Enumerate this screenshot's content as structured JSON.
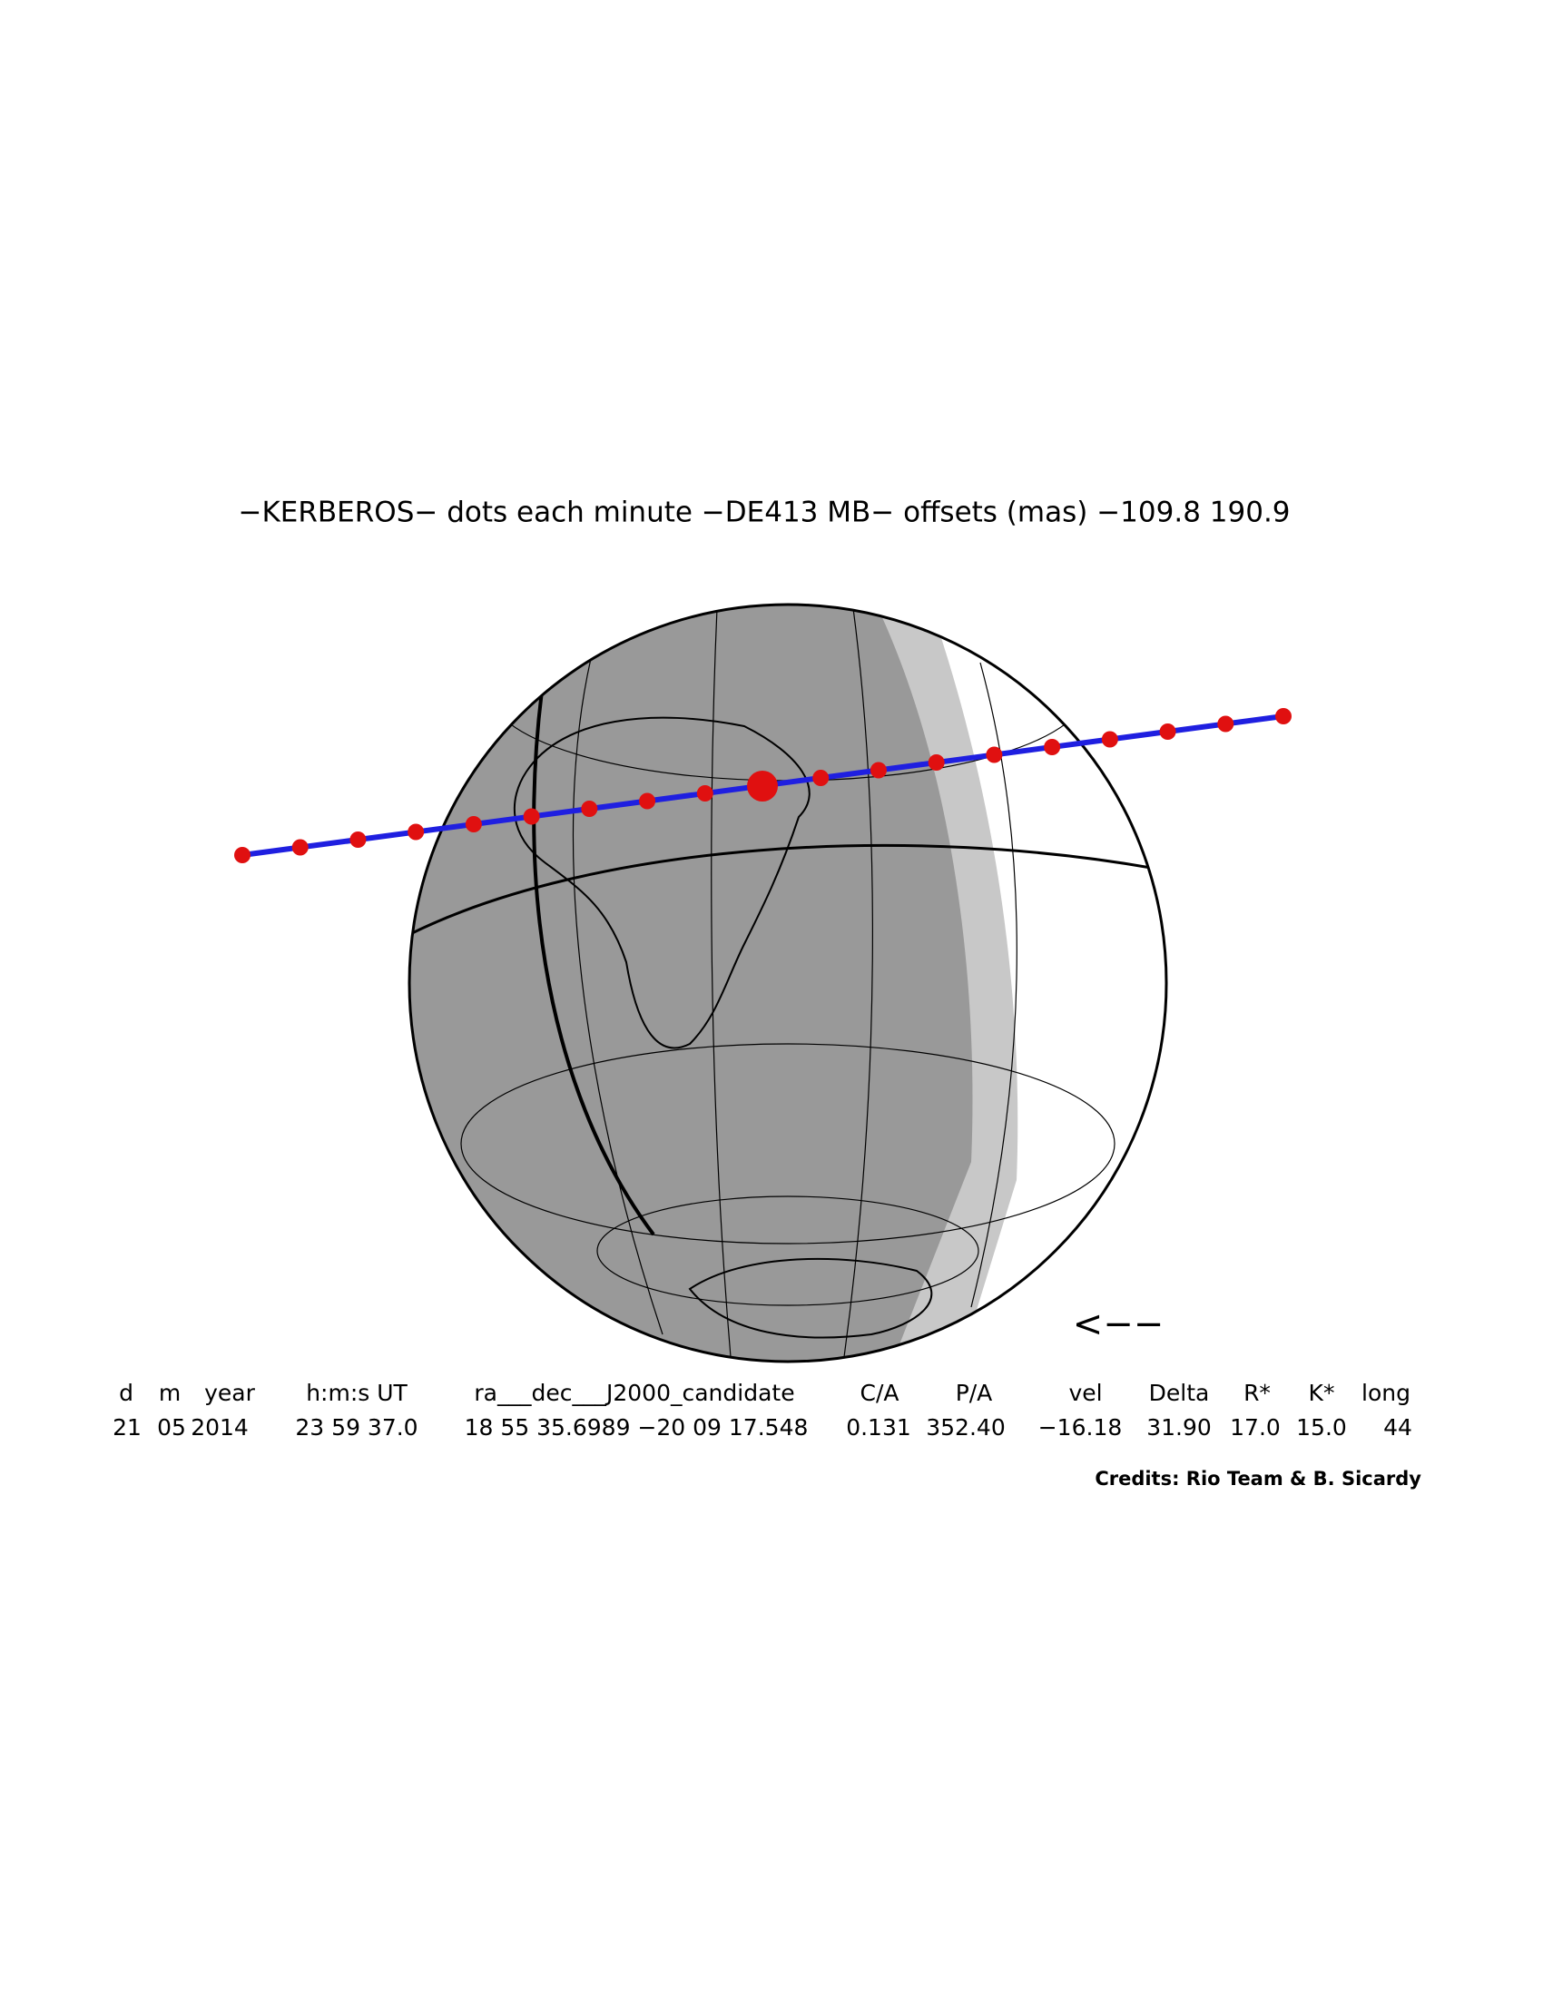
{
  "header": {
    "title": "−KERBEROS− dots each minute −DE413 MB− offsets (mas) −109.8   190.9"
  },
  "direction_arrow": "<−−",
  "table": {
    "columns": [
      "d",
      "m",
      "year",
      "h:m:s UT",
      "ra___dec___J2000_candidate",
      "C/A",
      "P/A",
      "vel",
      "Delta",
      "R*",
      "K*",
      "long"
    ],
    "values": [
      "21",
      "05",
      "2014",
      "23 59 37.0",
      "18 55 35.6989 −20 09 17.548",
      "0.131",
      "352.40",
      "−16.18",
      "31.90",
      "17.0",
      "15.0",
      "44"
    ]
  },
  "footer": {
    "credits": "Credits: Rio Team & B. Sicardy"
  }
}
